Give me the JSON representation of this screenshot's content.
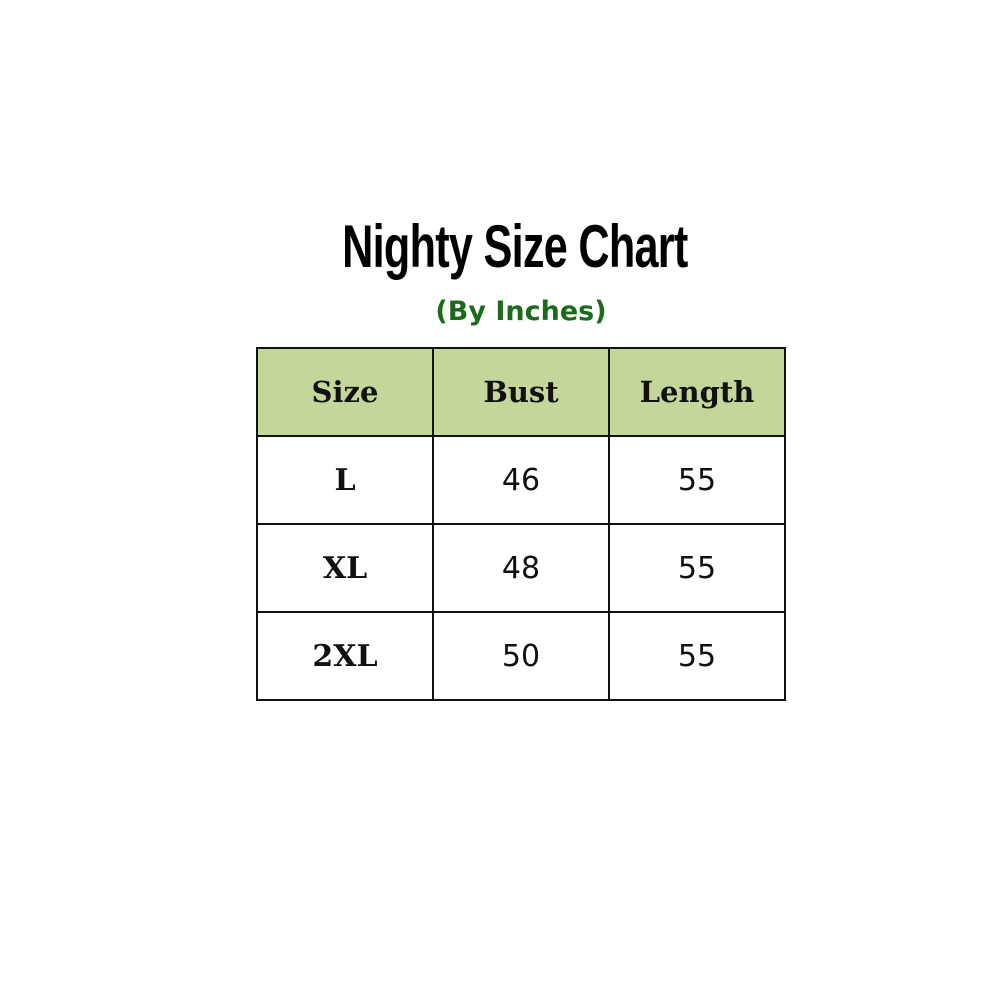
{
  "title": "Nighty Size Chart",
  "subtitle": "(By Inches)",
  "colors": {
    "header_bg": "#c4d79b",
    "subtitle": "#1b6b1b"
  },
  "table": {
    "headers": [
      "Size",
      "Bust",
      "Length"
    ],
    "rows": [
      [
        "L",
        "46",
        "55"
      ],
      [
        "XL",
        "48",
        "55"
      ],
      [
        "2XL",
        "50",
        "55"
      ]
    ]
  }
}
